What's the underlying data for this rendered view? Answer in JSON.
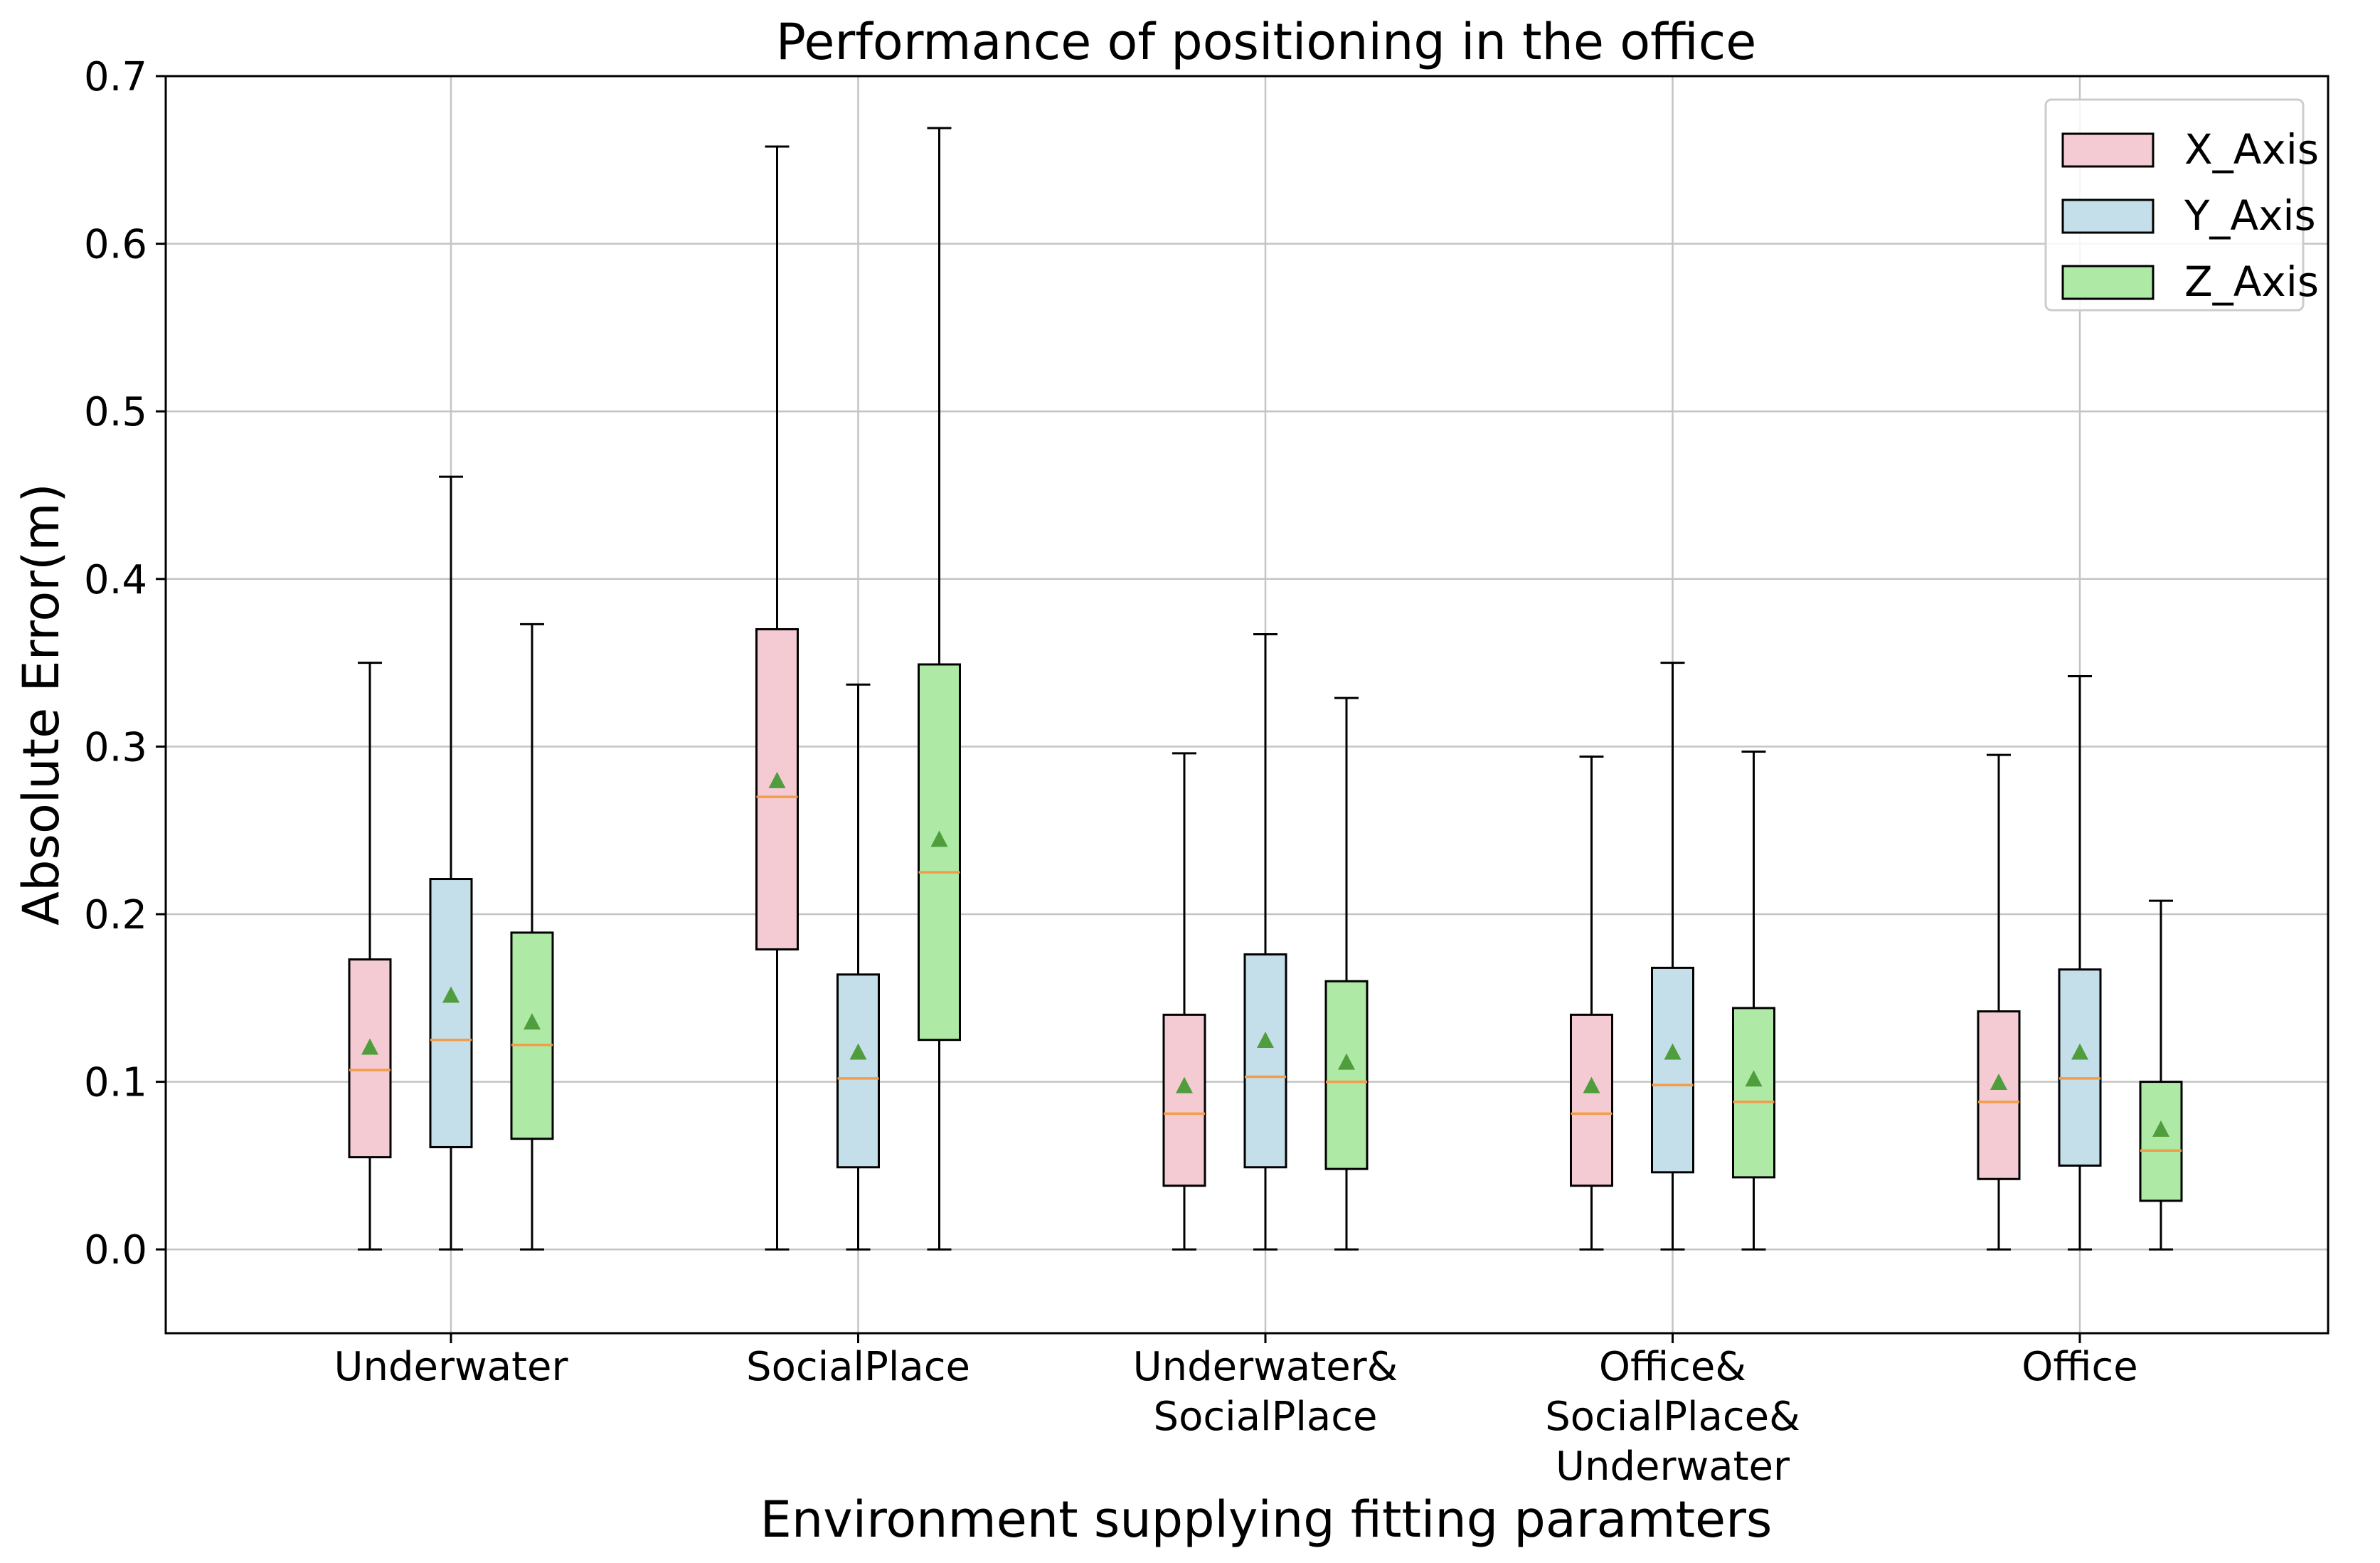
{
  "chart_data": {
    "type": "box",
    "title": "Performance of positioning in the office",
    "xlabel": "Environment supplying fitting paramters",
    "ylabel": "Absolute Error(m)",
    "ylim": [
      -0.05,
      0.7
    ],
    "yticks": [
      "0.0",
      "0.1",
      "0.2",
      "0.3",
      "0.4",
      "0.5",
      "0.6",
      "0.7"
    ],
    "grid": true,
    "legend_position": "top-right",
    "categories": [
      [
        "Underwater"
      ],
      [
        "SocialPlace"
      ],
      [
        "Underwater&",
        "SocialPlace"
      ],
      [
        "Office&",
        "SocialPlace&",
        "Underwater"
      ],
      [
        "Office"
      ]
    ],
    "series": [
      {
        "name": "X_Axis",
        "color": "#f5cbd3",
        "boxes": [
          {
            "min": 0.0,
            "q1": 0.055,
            "median": 0.107,
            "q3": 0.173,
            "max": 0.35,
            "mean": 0.12
          },
          {
            "min": 0.0,
            "q1": 0.179,
            "median": 0.27,
            "q3": 0.37,
            "max": 0.658,
            "mean": 0.279
          },
          {
            "min": 0.0,
            "q1": 0.038,
            "median": 0.081,
            "q3": 0.14,
            "max": 0.296,
            "mean": 0.097
          },
          {
            "min": 0.0,
            "q1": 0.038,
            "median": 0.081,
            "q3": 0.14,
            "max": 0.294,
            "mean": 0.097
          },
          {
            "min": 0.0,
            "q1": 0.042,
            "median": 0.088,
            "q3": 0.142,
            "max": 0.295,
            "mean": 0.099
          }
        ]
      },
      {
        "name": "Y_Axis",
        "color": "#c4dfe9",
        "boxes": [
          {
            "min": 0.0,
            "q1": 0.061,
            "median": 0.125,
            "q3": 0.221,
            "max": 0.461,
            "mean": 0.151
          },
          {
            "min": 0.0,
            "q1": 0.049,
            "median": 0.102,
            "q3": 0.164,
            "max": 0.337,
            "mean": 0.117
          },
          {
            "min": 0.0,
            "q1": 0.049,
            "median": 0.103,
            "q3": 0.176,
            "max": 0.367,
            "mean": 0.124
          },
          {
            "min": 0.0,
            "q1": 0.046,
            "median": 0.098,
            "q3": 0.168,
            "max": 0.35,
            "mean": 0.117
          },
          {
            "min": 0.0,
            "q1": 0.05,
            "median": 0.102,
            "q3": 0.167,
            "max": 0.342,
            "mean": 0.117
          }
        ]
      },
      {
        "name": "Z_Axis",
        "color": "#aeeaa5",
        "boxes": [
          {
            "min": 0.0,
            "q1": 0.066,
            "median": 0.122,
            "q3": 0.189,
            "max": 0.373,
            "mean": 0.135
          },
          {
            "min": 0.0,
            "q1": 0.125,
            "median": 0.225,
            "q3": 0.349,
            "max": 0.669,
            "mean": 0.244
          },
          {
            "min": 0.0,
            "q1": 0.048,
            "median": 0.1,
            "q3": 0.16,
            "max": 0.329,
            "mean": 0.111
          },
          {
            "min": 0.0,
            "q1": 0.043,
            "median": 0.088,
            "q3": 0.144,
            "max": 0.297,
            "mean": 0.101
          },
          {
            "min": 0.0,
            "q1": 0.029,
            "median": 0.059,
            "q3": 0.1,
            "max": 0.208,
            "mean": 0.071
          }
        ]
      }
    ],
    "median_color": "#f39c4a",
    "mean_marker_color": "#4f9d3c"
  }
}
